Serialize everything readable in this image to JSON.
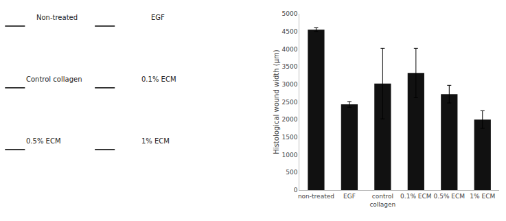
{
  "chart_data": {
    "type": "bar",
    "categories": [
      "non-treated",
      "EGF",
      "control\ncollagen",
      "0.1% ECM",
      "0.5% ECM",
      "1% ECM"
    ],
    "values": [
      4550,
      2430,
      3020,
      3320,
      2720,
      2000
    ],
    "errors": [
      50,
      80,
      1000,
      700,
      250,
      250
    ],
    "color": "#111111",
    "ylabel": "Histological wound width (μm)",
    "ylim": [
      0,
      5000
    ],
    "yticks": [
      0,
      500,
      1000,
      1500,
      2000,
      2500,
      3000,
      3500,
      4000,
      4500,
      5000
    ],
    "grid": false,
    "annotations": [
      "Non-treated",
      "EGF",
      "Control collagen",
      "0.1% ECM",
      "0.5% ECM",
      "1% ECM"
    ]
  }
}
